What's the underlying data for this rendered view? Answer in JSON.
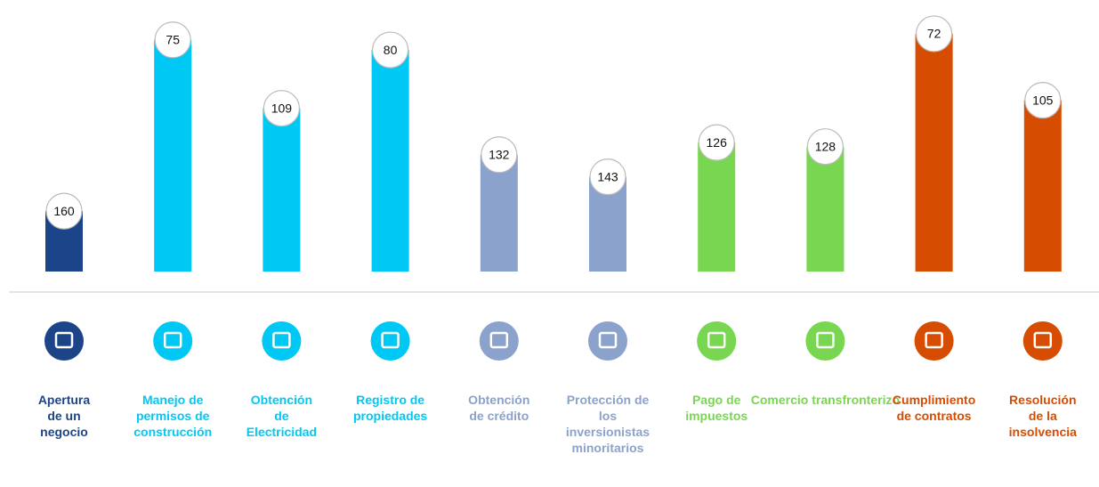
{
  "chart_data": {
    "type": "bar",
    "categories": [
      "Apertura de un negocio",
      "Manejo de permisos de construcción",
      "Obtención de Electricidad",
      "Registro de propiedades",
      "Obtención de crédito",
      "Protección de los inversionistas minoritarios",
      "Pago de impuestos",
      "Comercio transfronterizo",
      "Cumplimiento de contratos",
      "Resolución de la insolvencia"
    ],
    "values": [
      160,
      75,
      109,
      80,
      132,
      143,
      126,
      128,
      72,
      105
    ],
    "colors": [
      "#1b4489",
      "#00c8f5",
      "#00c8f5",
      "#00c8f5",
      "#8aa2cc",
      "#8aa2cc",
      "#78d650",
      "#78d650",
      "#d64c00",
      "#d64c00"
    ],
    "ylim": [
      190,
      0
    ]
  }
}
